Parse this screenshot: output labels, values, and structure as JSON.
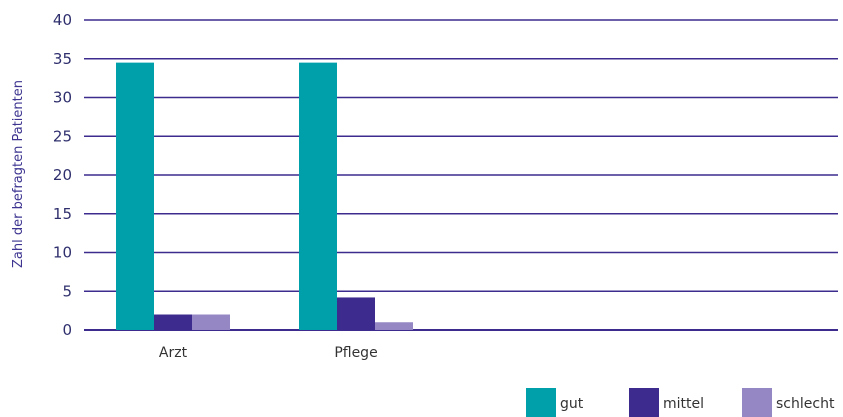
{
  "chart_data": {
    "type": "bar",
    "title": "",
    "xlabel": "",
    "ylabel": "Zahl der befragten Patienten",
    "ylim": [
      0,
      40
    ],
    "yticks": [
      0,
      5,
      10,
      15,
      20,
      25,
      30,
      35,
      40
    ],
    "categories": [
      "Arzt",
      "Pflege"
    ],
    "series": [
      {
        "name": "gut",
        "values": [
          34.5,
          34.5
        ],
        "color": "#00a0ab"
      },
      {
        "name": "mittel",
        "values": [
          2,
          4.2
        ],
        "color": "#3d2c8d"
      },
      {
        "name": "schlecht",
        "values": [
          2,
          1
        ],
        "color": "#9487c3"
      }
    ],
    "grid": true,
    "gridline_color": "#3d2c8d",
    "legend_position": "bottom-right"
  }
}
